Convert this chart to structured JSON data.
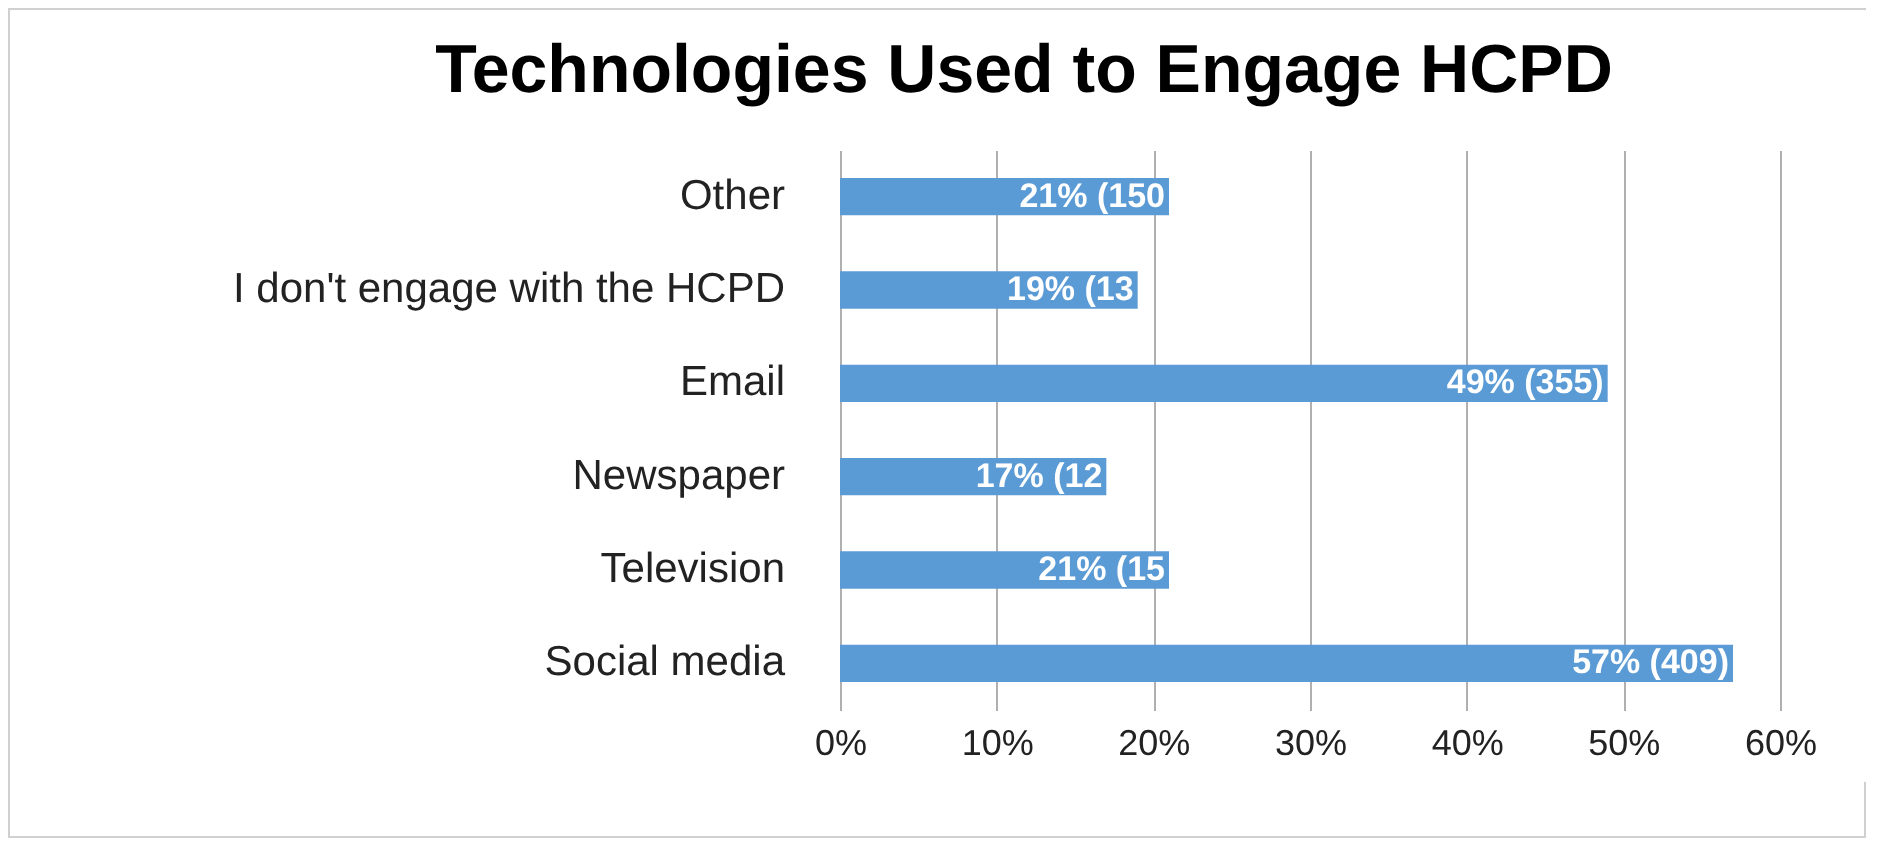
{
  "chart_data": {
    "type": "bar",
    "orientation": "horizontal",
    "title": "Technologies Used to Engage HCPD",
    "categories": [
      "Other",
      "I don't engage with the HCPD",
      "Email",
      "Newspaper",
      "Television",
      "Social media"
    ],
    "values": [
      21,
      19,
      49,
      17,
      21,
      57
    ],
    "value_labels": [
      "21% (150",
      "19% (13",
      "49% (355)",
      "17% (12",
      "21% (15",
      "57% (409)"
    ],
    "color": "#5b9bd5",
    "xlim": [
      0,
      60
    ],
    "xticks": [
      {
        "value": 0,
        "label": "0%"
      },
      {
        "value": 10,
        "label": "10%"
      },
      {
        "value": 20,
        "label": "20%"
      },
      {
        "value": 30,
        "label": "30%"
      },
      {
        "value": 40,
        "label": "40%"
      },
      {
        "value": 50,
        "label": "50%"
      },
      {
        "value": 60,
        "label": "60%"
      }
    ],
    "grid": "x"
  }
}
